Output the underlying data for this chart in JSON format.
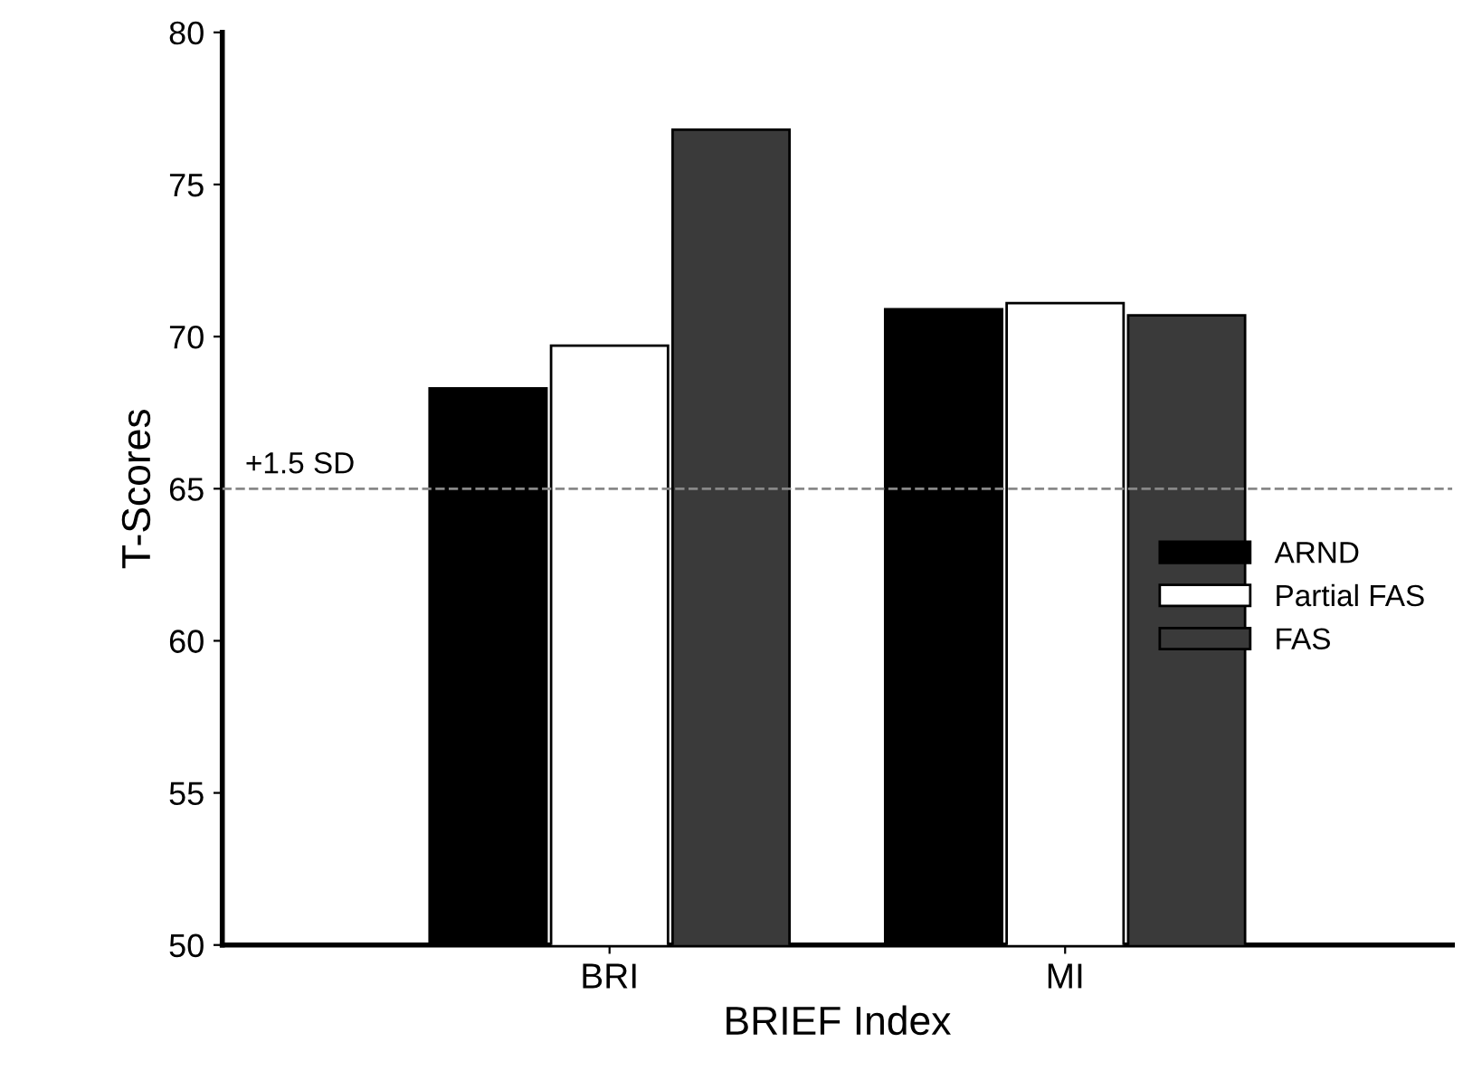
{
  "chart_data": {
    "type": "bar",
    "xlabel": "BRIEF Index",
    "ylabel": "T-Scores",
    "categories": [
      "BRI",
      "MI"
    ],
    "series": [
      {
        "name": "ARND",
        "color": "#000000",
        "values": [
          68.3,
          70.9
        ]
      },
      {
        "name": "Partial FAS",
        "color": "#ffffff",
        "values": [
          69.7,
          71.1
        ]
      },
      {
        "name": "FAS",
        "color": "#3a3a3a",
        "values": [
          76.8,
          70.7
        ]
      }
    ],
    "ylim": [
      50,
      80
    ],
    "yticks": [
      50,
      55,
      60,
      65,
      70,
      75,
      80
    ],
    "ref_lines": [
      {
        "axis": "y",
        "value": 65,
        "label": "+1.5 SD",
        "color": "#888888",
        "line_style": "dashed"
      }
    ],
    "grid": false,
    "legend": "right"
  }
}
